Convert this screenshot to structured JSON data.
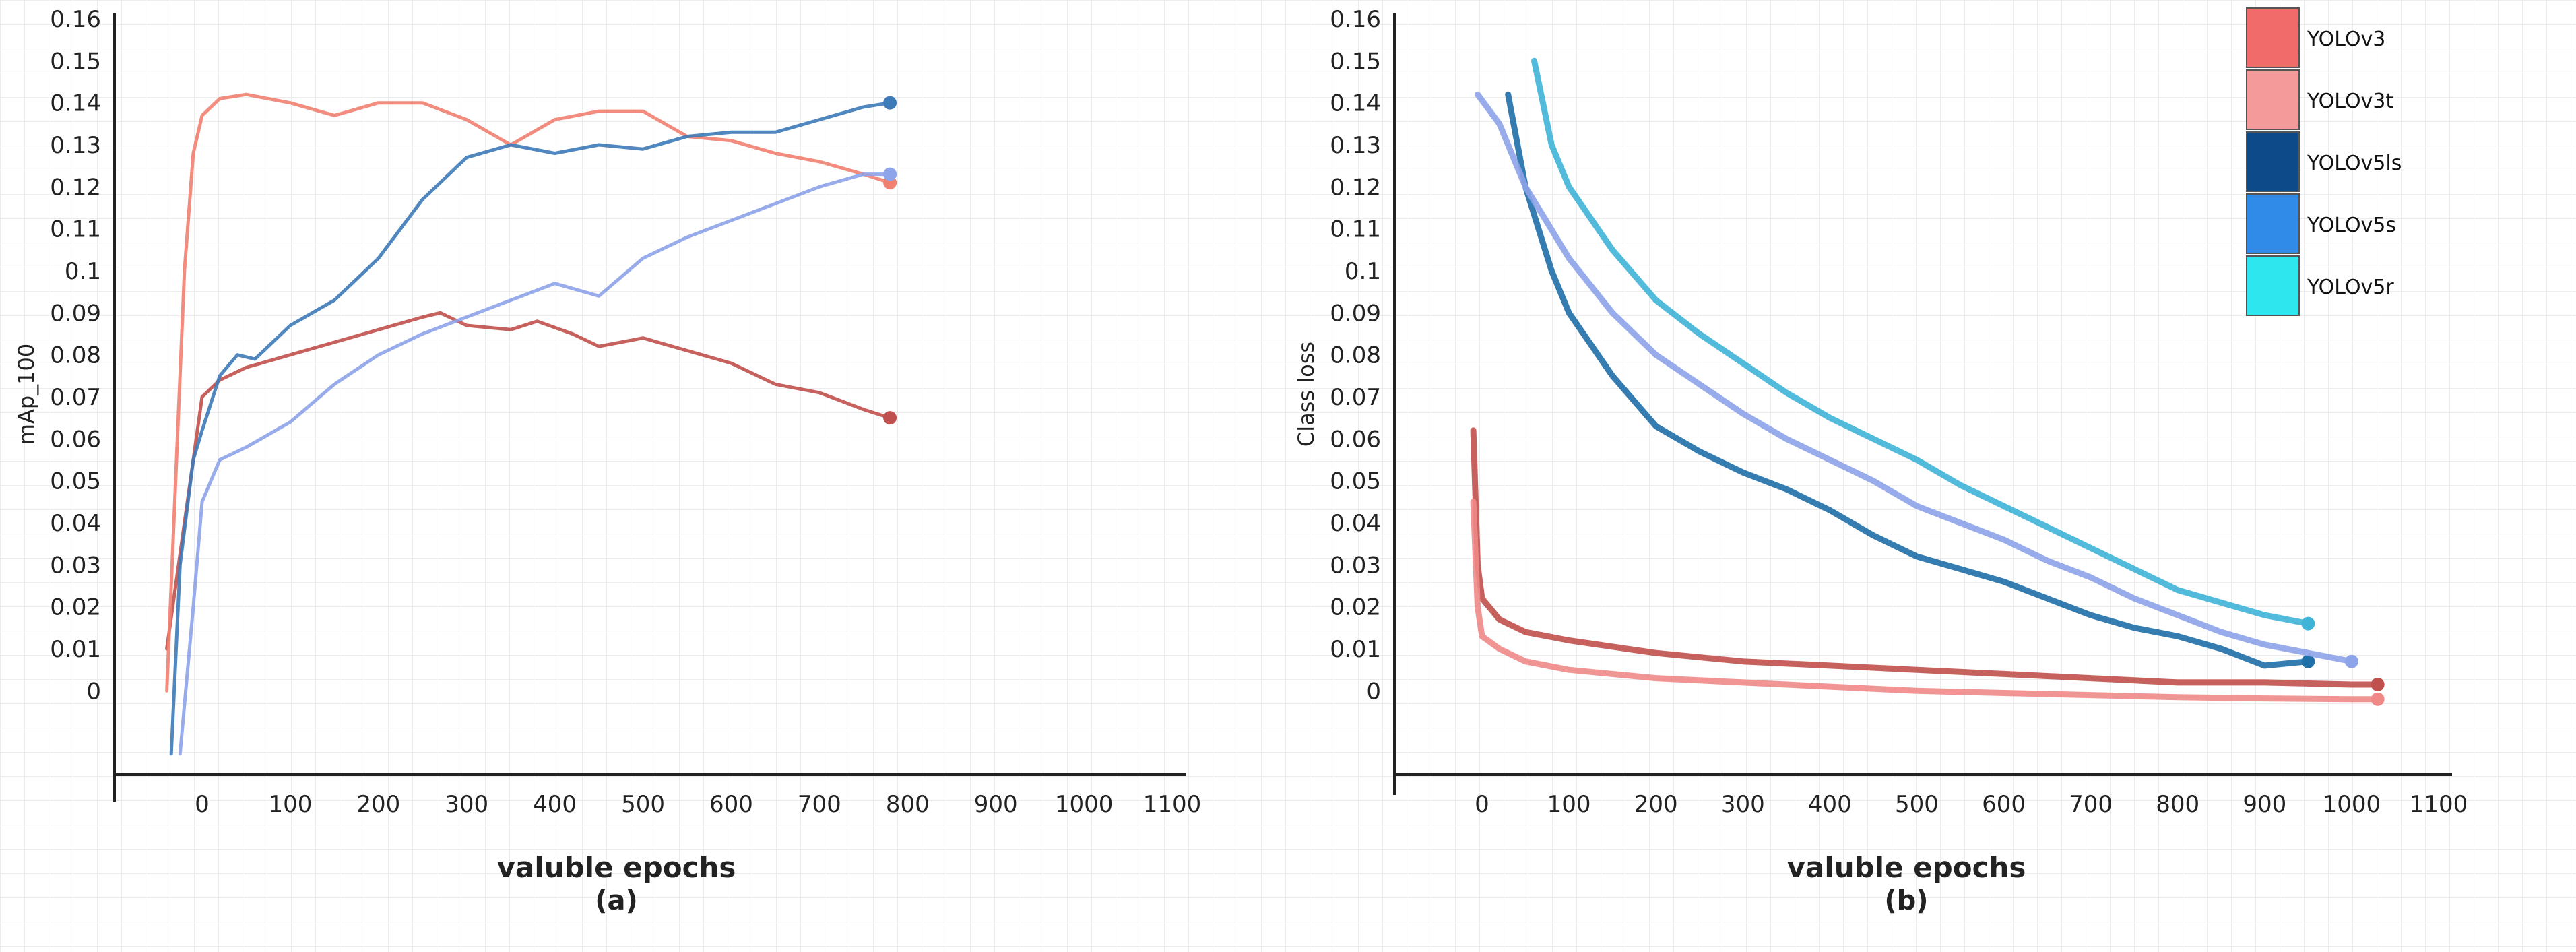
{
  "chart_data": [
    {
      "type": "line",
      "panel": "(a)",
      "title": "",
      "xlabel": "valuble epochs",
      "ylabel": "mAp_100",
      "xlim": [
        -60,
        1100
      ],
      "ylim": [
        -0.02,
        0.16
      ],
      "x_ticks": [
        "0",
        "100",
        "200",
        "300",
        "400",
        "500",
        "600",
        "700",
        "800",
        "900",
        "1000",
        "1100"
      ],
      "y_ticks": [
        "0",
        "0.01",
        "0.02",
        "0.03",
        "0.04",
        "0.05",
        "0.06",
        "0.07",
        "0.08",
        "0.09",
        "0.1",
        "0.11",
        "0.12",
        "0.13",
        "0.14",
        "0.15",
        "0.16"
      ],
      "series": [
        {
          "name": "YOLOv3",
          "color": "#c0504d",
          "x": [
            -40,
            -20,
            0,
            20,
            50,
            100,
            150,
            200,
            250,
            270,
            300,
            350,
            380,
            420,
            450,
            500,
            550,
            600,
            650,
            700,
            750,
            780
          ],
          "y": [
            0.01,
            0.04,
            0.07,
            0.074,
            0.077,
            0.08,
            0.083,
            0.086,
            0.089,
            0.09,
            0.087,
            0.086,
            0.088,
            0.085,
            0.082,
            0.084,
            0.081,
            0.078,
            0.073,
            0.071,
            0.067,
            0.065
          ]
        },
        {
          "name": "YOLOv3t",
          "color": "#f08070",
          "x": [
            -40,
            -30,
            -20,
            -10,
            0,
            20,
            50,
            100,
            150,
            200,
            250,
            300,
            350,
            400,
            450,
            500,
            550,
            600,
            650,
            700,
            750,
            780
          ],
          "y": [
            0.0,
            0.05,
            0.1,
            0.128,
            0.137,
            0.141,
            0.142,
            0.14,
            0.137,
            0.14,
            0.14,
            0.136,
            0.13,
            0.136,
            0.138,
            0.138,
            0.132,
            0.131,
            0.128,
            0.126,
            0.123,
            0.121
          ]
        },
        {
          "name": "YOLOv5ls",
          "color": "#3d7ab8",
          "x": [
            -35,
            -25,
            -10,
            0,
            20,
            40,
            60,
            100,
            150,
            200,
            250,
            300,
            350,
            400,
            450,
            500,
            550,
            600,
            650,
            700,
            750,
            780
          ],
          "y": [
            -0.015,
            0.03,
            0.055,
            0.062,
            0.075,
            0.08,
            0.079,
            0.087,
            0.093,
            0.103,
            0.117,
            0.127,
            0.13,
            0.128,
            0.13,
            0.129,
            0.132,
            0.133,
            0.133,
            0.136,
            0.139,
            0.14
          ]
        },
        {
          "name": "YOLOv5s",
          "color": "#8da3ea",
          "x": [
            -25,
            -10,
            0,
            20,
            50,
            100,
            150,
            200,
            250,
            300,
            350,
            400,
            450,
            500,
            550,
            600,
            650,
            700,
            750,
            780
          ],
          "y": [
            -0.015,
            0.02,
            0.045,
            0.055,
            0.058,
            0.064,
            0.073,
            0.08,
            0.085,
            0.089,
            0.093,
            0.097,
            0.094,
            0.103,
            0.108,
            0.112,
            0.116,
            0.12,
            0.123,
            0.123
          ]
        }
      ]
    },
    {
      "type": "line",
      "panel": "(b)",
      "title": "",
      "xlabel": "valuble epochs",
      "ylabel": "Class loss",
      "xlim": [
        -60,
        1100
      ],
      "ylim": [
        -0.02,
        0.16
      ],
      "x_ticks": [
        "0",
        "100",
        "200",
        "300",
        "400",
        "500",
        "600",
        "700",
        "800",
        "900",
        "1000",
        "1100"
      ],
      "y_ticks": [
        "0",
        "0.01",
        "0.02",
        "0.03",
        "0.04",
        "0.05",
        "0.06",
        "0.07",
        "0.08",
        "0.09",
        "0.1",
        "0.11",
        "0.12",
        "0.13",
        "0.14",
        "0.15",
        "0.16"
      ],
      "legend": {
        "placement": "top-right",
        "entries": [
          {
            "label": "YOLOv3",
            "color": "#f26b6b"
          },
          {
            "label": "YOLOv3t",
            "color": "#f49a9a"
          },
          {
            "label": "YOLOv5ls",
            "color": "#0d4a8a"
          },
          {
            "label": "YOLOv5s",
            "color": "#2f8ae8"
          },
          {
            "label": "YOLOv5r",
            "color": "#2ee6ee"
          }
        ]
      },
      "series": [
        {
          "name": "YOLOv3",
          "color": "#c0504d",
          "x": [
            -10,
            -5,
            0,
            20,
            50,
            100,
            200,
            300,
            400,
            500,
            600,
            700,
            800,
            900,
            1000,
            1030
          ],
          "y": [
            0.062,
            0.03,
            0.022,
            0.017,
            0.014,
            0.012,
            0.009,
            0.007,
            0.006,
            0.005,
            0.004,
            0.003,
            0.002,
            0.002,
            0.0015,
            0.0015
          ]
        },
        {
          "name": "YOLOv3t",
          "color": "#f08888",
          "x": [
            -10,
            -5,
            0,
            20,
            50,
            100,
            200,
            300,
            400,
            500,
            600,
            700,
            800,
            900,
            1000,
            1030
          ],
          "y": [
            0.045,
            0.02,
            0.013,
            0.01,
            0.007,
            0.005,
            0.003,
            0.002,
            0.001,
            0.0,
            -0.0005,
            -0.001,
            -0.0015,
            -0.0018,
            -0.002,
            -0.002
          ]
        },
        {
          "name": "YOLOv5ls",
          "color": "#1f6fa8",
          "x": [
            30,
            50,
            80,
            100,
            150,
            200,
            250,
            300,
            350,
            400,
            450,
            500,
            550,
            600,
            650,
            700,
            750,
            800,
            850,
            900,
            950
          ],
          "y": [
            0.142,
            0.12,
            0.1,
            0.09,
            0.075,
            0.063,
            0.057,
            0.052,
            0.048,
            0.043,
            0.037,
            0.032,
            0.029,
            0.026,
            0.022,
            0.018,
            0.015,
            0.013,
            0.01,
            0.006,
            0.007
          ]
        },
        {
          "name": "YOLOv5s",
          "color": "#8da3ea",
          "x": [
            -5,
            20,
            50,
            100,
            150,
            200,
            250,
            300,
            350,
            400,
            450,
            500,
            550,
            600,
            650,
            700,
            750,
            800,
            850,
            900,
            950,
            1000
          ],
          "y": [
            0.142,
            0.135,
            0.12,
            0.103,
            0.09,
            0.08,
            0.073,
            0.066,
            0.06,
            0.055,
            0.05,
            0.044,
            0.04,
            0.036,
            0.031,
            0.027,
            0.022,
            0.018,
            0.014,
            0.011,
            0.009,
            0.007
          ]
        },
        {
          "name": "YOLOv5r",
          "color": "#3fb4d8",
          "x": [
            60,
            80,
            100,
            150,
            200,
            250,
            300,
            350,
            400,
            450,
            500,
            550,
            600,
            650,
            700,
            750,
            800,
            850,
            900,
            950
          ],
          "y": [
            0.15,
            0.13,
            0.12,
            0.105,
            0.093,
            0.085,
            0.078,
            0.071,
            0.065,
            0.06,
            0.055,
            0.049,
            0.044,
            0.039,
            0.034,
            0.029,
            0.024,
            0.021,
            0.018,
            0.016
          ]
        }
      ]
    }
  ]
}
